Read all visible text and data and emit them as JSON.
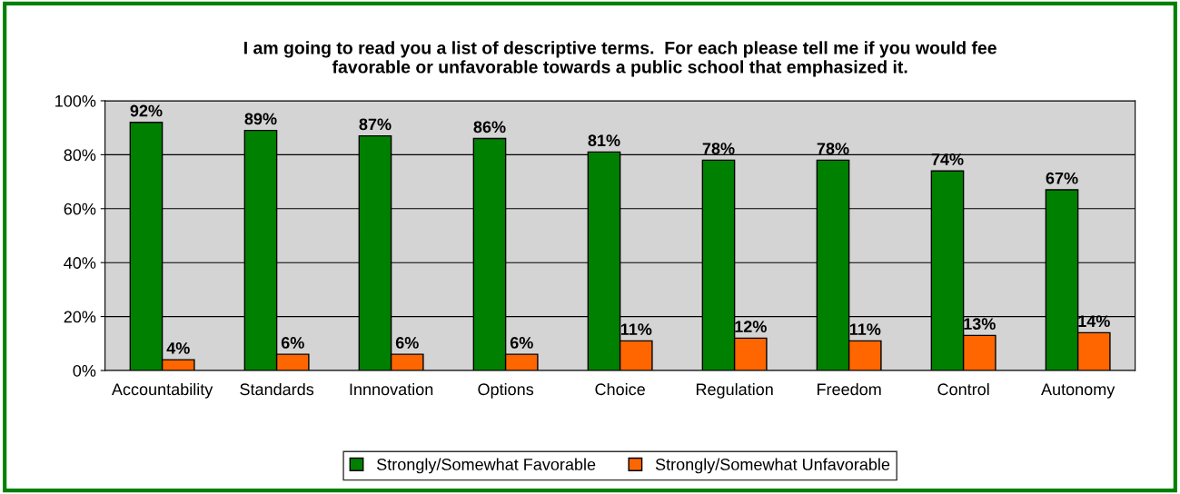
{
  "chart_data": {
    "type": "bar",
    "title": "I am going to read you a list of descriptive terms.  For each please tell me if you would fee\nfavorable or unfavorable towards a public school that emphasized it.",
    "categories": [
      "Accountability",
      "Standards",
      "Innnovation",
      "Options",
      "Choice",
      "Regulation",
      "Freedom",
      "Control",
      "Autonomy"
    ],
    "series": [
      {
        "name": "Strongly/Somewhat Favorable",
        "color": "#008000",
        "values": [
          92,
          89,
          87,
          86,
          81,
          78,
          78,
          74,
          67
        ],
        "value_labels": [
          "92%",
          "89%",
          "87%",
          "86%",
          "81%",
          "78%",
          "78%",
          "74%",
          "67%"
        ]
      },
      {
        "name": "Strongly/Somewhat Unfavorable",
        "color": "#ff6600",
        "values": [
          4,
          6,
          6,
          6,
          11,
          12,
          11,
          13,
          14
        ],
        "value_labels": [
          "4%",
          "6%",
          "6%",
          "6%",
          "11%",
          "12%",
          "11%",
          "13%",
          "14%"
        ]
      }
    ],
    "ylim": [
      0,
      100
    ],
    "yticks": [
      {
        "value": 0,
        "label": "0%"
      },
      {
        "value": 20,
        "label": "20%"
      },
      {
        "value": 40,
        "label": "40%"
      },
      {
        "value": 60,
        "label": "60%"
      },
      {
        "value": 80,
        "label": "80%"
      },
      {
        "value": 100,
        "label": "100%"
      }
    ],
    "grid": "y",
    "legend": "bottom"
  }
}
